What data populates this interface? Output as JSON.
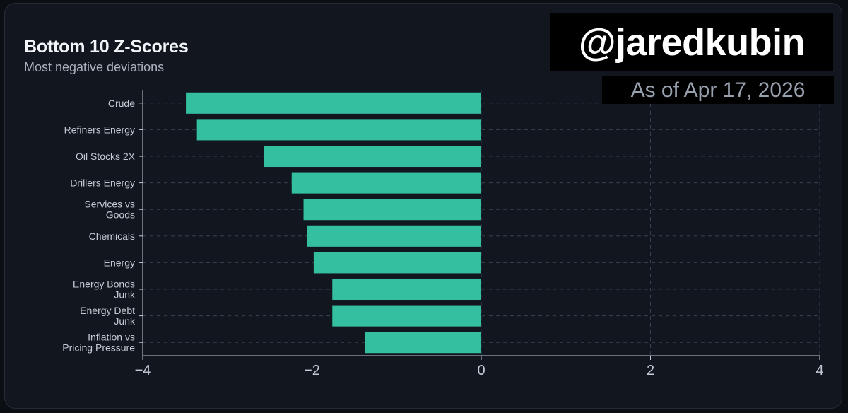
{
  "header": {
    "title": "Bottom 10 Z-Scores",
    "subtitle": "Most negative deviations"
  },
  "watermark": {
    "handle": "@jaredkubin",
    "as_of": "As of Apr 17, 2026"
  },
  "toolbar": {
    "download_icon": "download-icon"
  },
  "colors": {
    "bar": "#33bfa0",
    "grid": "#3a414c",
    "axis": "#c5cbd4",
    "background": "#12161e"
  },
  "chart_data": {
    "type": "bar",
    "orientation": "horizontal",
    "title": "Bottom 10 Z-Scores",
    "subtitle": "Most negative deviations",
    "categories": [
      [
        "Crude"
      ],
      [
        "Refiners Energy"
      ],
      [
        "Oil Stocks 2X"
      ],
      [
        "Drillers Energy"
      ],
      [
        "Services vs",
        "Goods"
      ],
      [
        "Chemicals"
      ],
      [
        "Energy"
      ],
      [
        "Energy Bonds",
        "Junk"
      ],
      [
        "Energy Debt",
        "Junk"
      ],
      [
        "Inflation vs",
        "Pricing Pressure"
      ]
    ],
    "values": [
      -3.49,
      -3.36,
      -2.57,
      -2.24,
      -2.1,
      -2.06,
      -1.98,
      -1.76,
      -1.76,
      -1.37
    ],
    "xlim": [
      -4,
      4
    ],
    "xticks": [
      -4,
      -2,
      0,
      2,
      4
    ],
    "xtick_labels": [
      "−4",
      "−2",
      "0",
      "2",
      "4"
    ],
    "grid": true,
    "legend": "none"
  }
}
